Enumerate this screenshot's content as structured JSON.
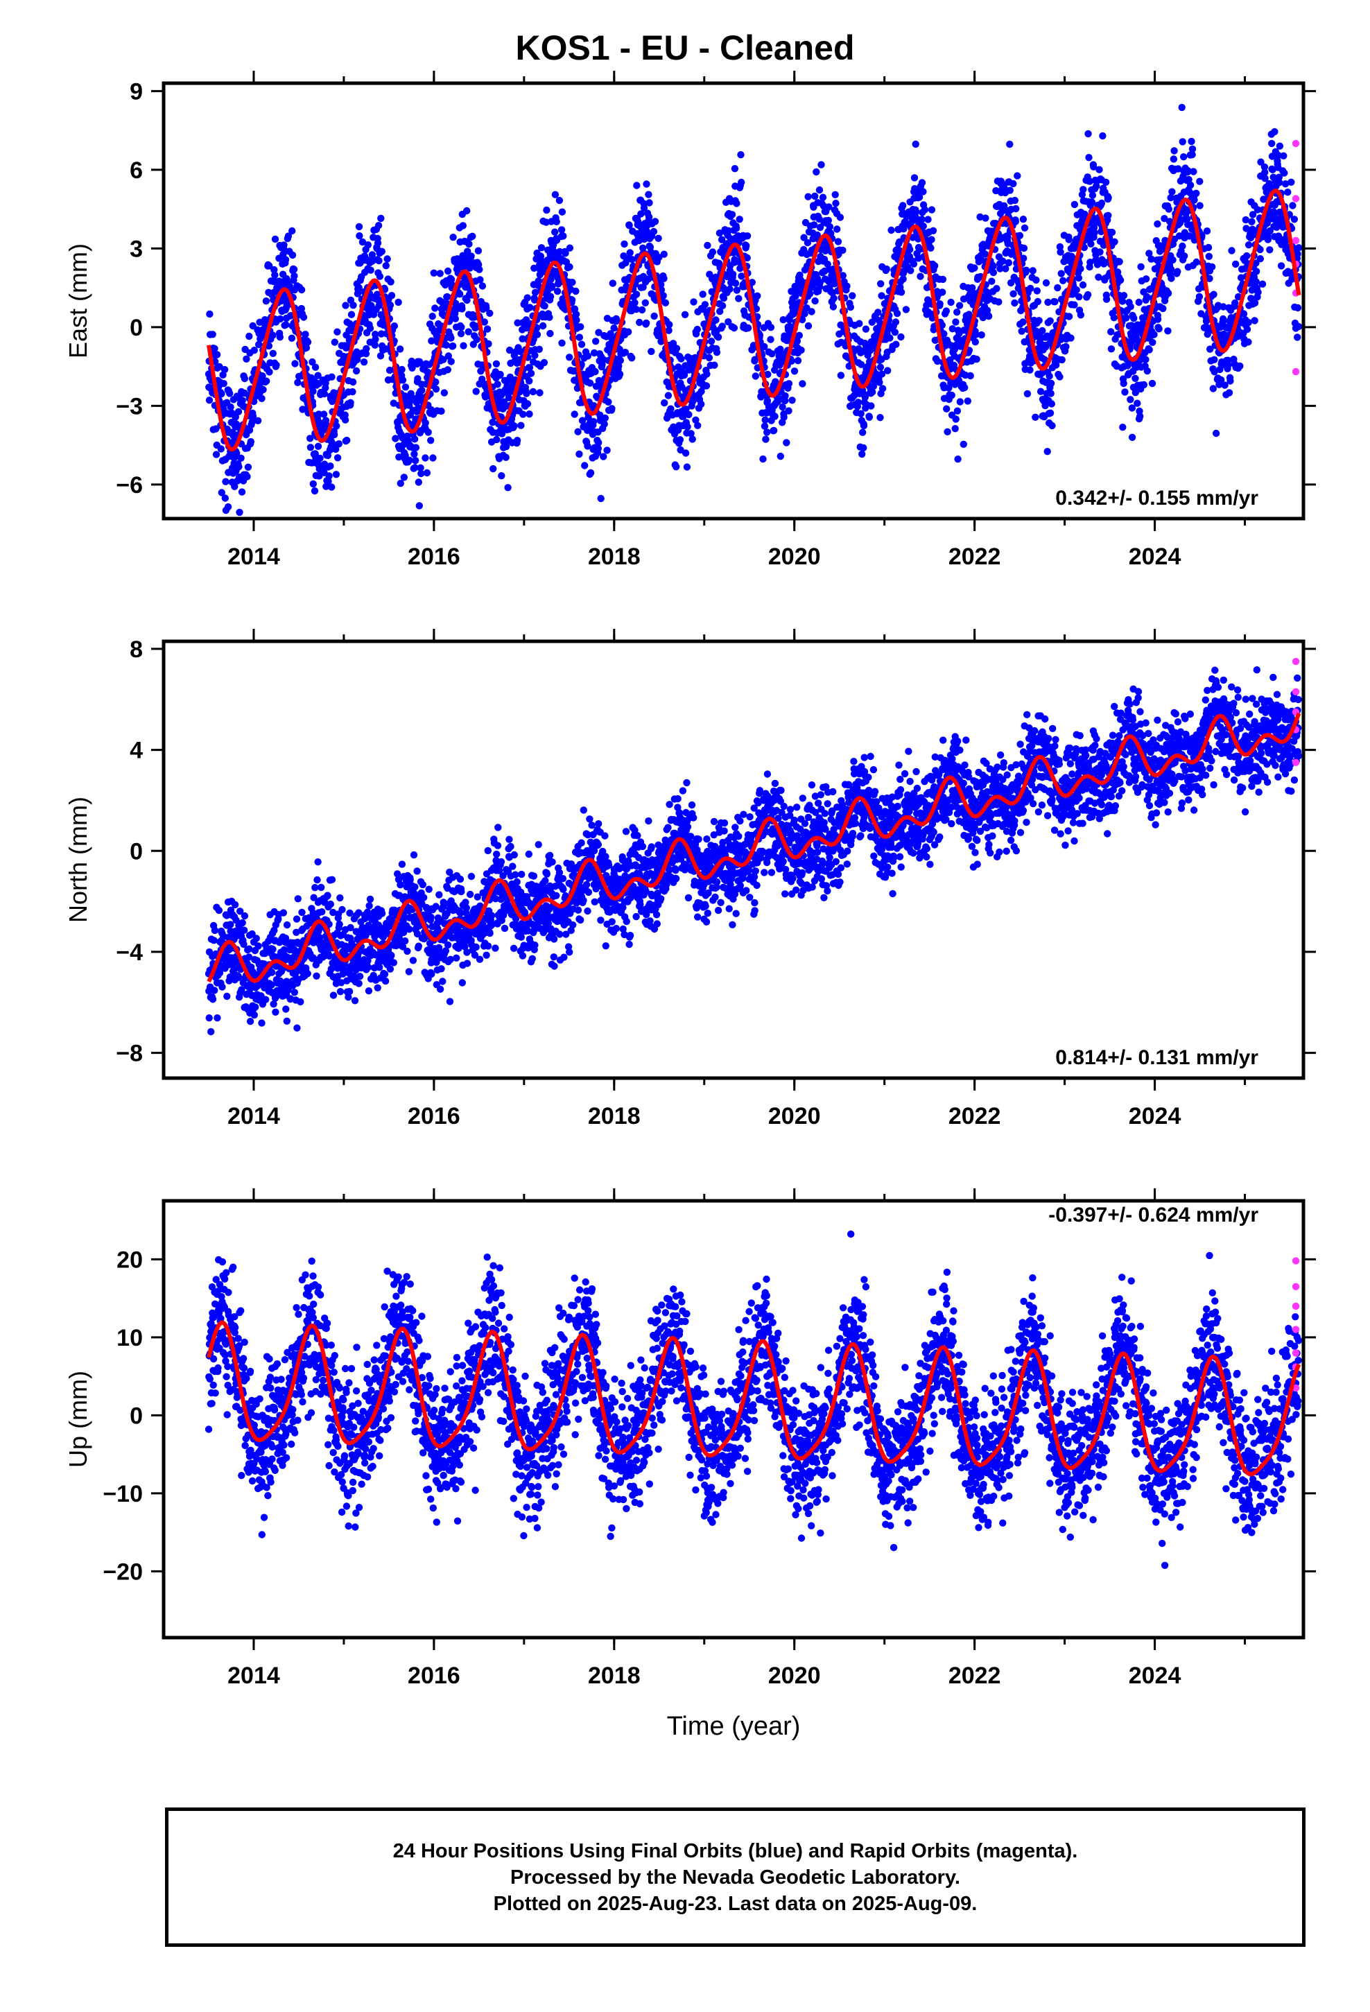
{
  "title": "KOS1  - EU - Cleaned",
  "colors": {
    "final": "#0000ff",
    "rapid": "#ff33ff",
    "model": "#ff0000",
    "axis": "#000000"
  },
  "chart_data": [
    {
      "type": "scatter",
      "name": "east",
      "ylabel": "East (mm)",
      "xlabel": "",
      "xlim": [
        2013.0,
        2025.65
      ],
      "ylim": [
        -7.3,
        9.3
      ],
      "xticks": [
        2014,
        2016,
        2018,
        2020,
        2022,
        2024
      ],
      "yticks": [
        -6,
        -3,
        0,
        3,
        6,
        9
      ],
      "velocity_label": "0.342+/- 0.155 mm/yr",
      "model": {
        "t0": 2019.5,
        "offset": 0.25,
        "trend": 0.342,
        "amp1": 2.85,
        "phase1": 0.05,
        "amp2": 0.4,
        "phase2": 0.3,
        "start": 2013.5,
        "end": 2025.6
      },
      "scatter": {
        "sd": 1.2,
        "seed": 11
      },
      "rapid": [
        7.0,
        4.9,
        3.3,
        2.4,
        1.3,
        -1.7
      ]
    },
    {
      "type": "scatter",
      "name": "north",
      "ylabel": "North (mm)",
      "xlabel": "",
      "xlim": [
        2013.0,
        2025.65
      ],
      "ylim": [
        -9.0,
        8.3
      ],
      "xticks": [
        2014,
        2016,
        2018,
        2020,
        2022,
        2024
      ],
      "yticks": [
        -8,
        -4,
        0,
        4,
        8
      ],
      "velocity_label": "0.814+/- 0.131 mm/yr",
      "model": {
        "t0": 2019.5,
        "offset": 0.0,
        "trend": 0.814,
        "amp1": 0.6,
        "phase1": 0.45,
        "amp2": 0.5,
        "phase2": 0.1,
        "start": 2013.5,
        "end": 2025.6
      },
      "scatter": {
        "sd": 0.9,
        "seed": 23
      },
      "rapid": [
        7.5,
        6.3,
        5.5,
        4.8,
        3.5
      ]
    },
    {
      "type": "scatter",
      "name": "up",
      "ylabel": "Up (mm)",
      "xlabel": "Time (year)",
      "xlim": [
        2013.0,
        2025.65
      ],
      "ylim": [
        -28.5,
        27.5
      ],
      "xticks": [
        2014,
        2016,
        2018,
        2020,
        2022,
        2024
      ],
      "yticks": [
        -20,
        -10,
        0,
        10,
        20
      ],
      "velocity_label": "-0.397+/- 0.624 mm/yr",
      "model": {
        "t0": 2019.5,
        "offset": 1.0,
        "trend": -0.397,
        "amp1": 7.2,
        "phase1": 0.38,
        "amp2": 1.5,
        "phase2": 0.05,
        "start": 2013.5,
        "end": 2025.6
      },
      "scatter": {
        "sd": 4.2,
        "seed": 37
      },
      "rapid": [
        19.8,
        16.5,
        14.0,
        11.0,
        8.0,
        6.2,
        3.5
      ]
    }
  ],
  "caption": {
    "line1": "24 Hour Positions Using Final Orbits (blue) and Rapid Orbits (magenta).",
    "line2": "Processed by the Nevada Geodetic Laboratory.",
    "line3": "Plotted on 2025-Aug-23. Last data on 2025-Aug-09."
  }
}
